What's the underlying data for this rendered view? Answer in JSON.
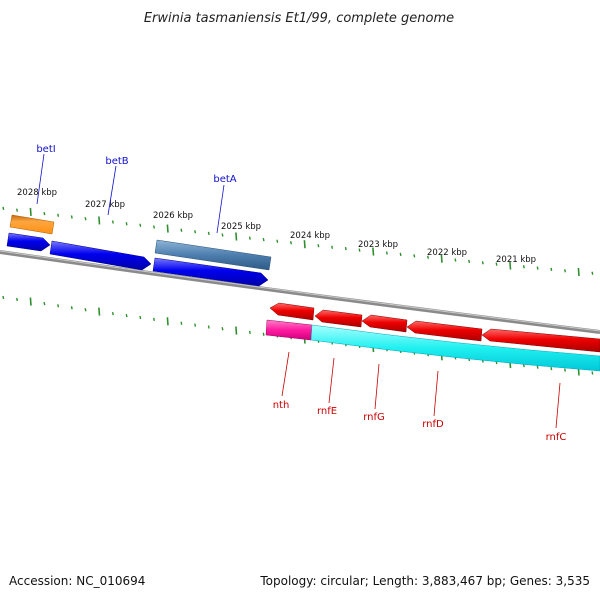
{
  "title": "Erwinia tasmaniensis Et1/99, complete genome",
  "accession_text": "Accession: NC_010694",
  "summary_text": "Topology: circular; Length: 3,883,467 bp; Genes: 3,535",
  "colors": {
    "backbone": "#8a8a8a",
    "tick": "#2f8f2f",
    "forward_label": "#1010cc",
    "reverse_label": "#cc0000"
  },
  "kbp_labels": [
    "2028 kbp",
    "2027 kbp",
    "2026 kbp",
    "2025 kbp",
    "2024 kbp",
    "2023 kbp",
    "2022 kbp",
    "2021 kbp"
  ],
  "forward_genes": [
    {
      "label": "betI"
    },
    {
      "label": "betB"
    },
    {
      "label": "betA"
    }
  ],
  "reverse_genes": [
    {
      "label": "nth"
    },
    {
      "label": "rnfE"
    },
    {
      "label": "rnfG"
    },
    {
      "label": "rnfD"
    },
    {
      "label": "rnfC"
    }
  ]
}
